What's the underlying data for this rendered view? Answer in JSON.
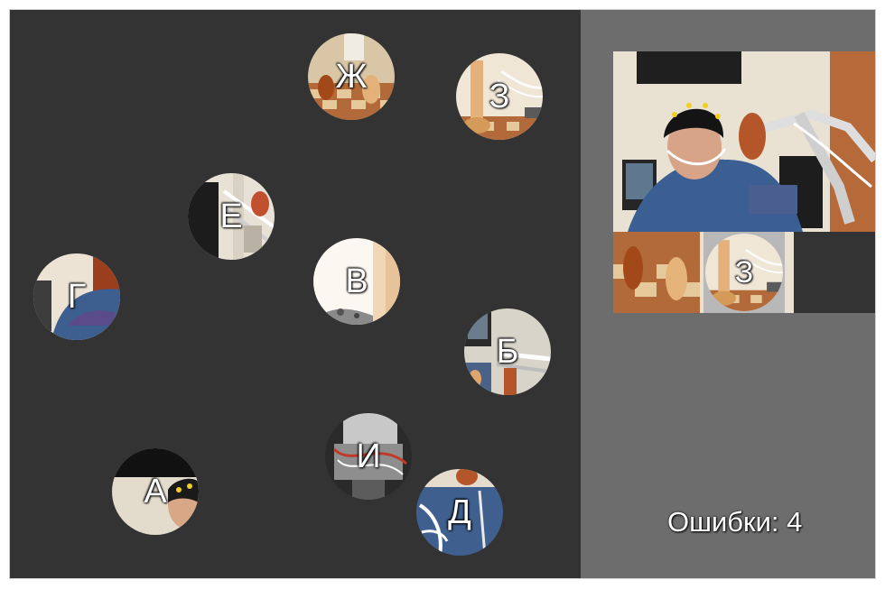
{
  "pieces": {
    "zh": {
      "label": "Ж"
    },
    "z": {
      "label": "З"
    },
    "e": {
      "label": "Е"
    },
    "g": {
      "label": "Г"
    },
    "v": {
      "label": "В"
    },
    "b": {
      "label": "Б"
    },
    "a": {
      "label": "А"
    },
    "i": {
      "label": "И"
    },
    "d": {
      "label": "Д"
    }
  },
  "placed_piece": {
    "label": "З"
  },
  "status": {
    "errors_text": "Ошибки: 4",
    "errors_count": 4
  },
  "colors": {
    "board": "#333333",
    "sidebar": "#6d6d6d",
    "label": "#ffffff"
  }
}
